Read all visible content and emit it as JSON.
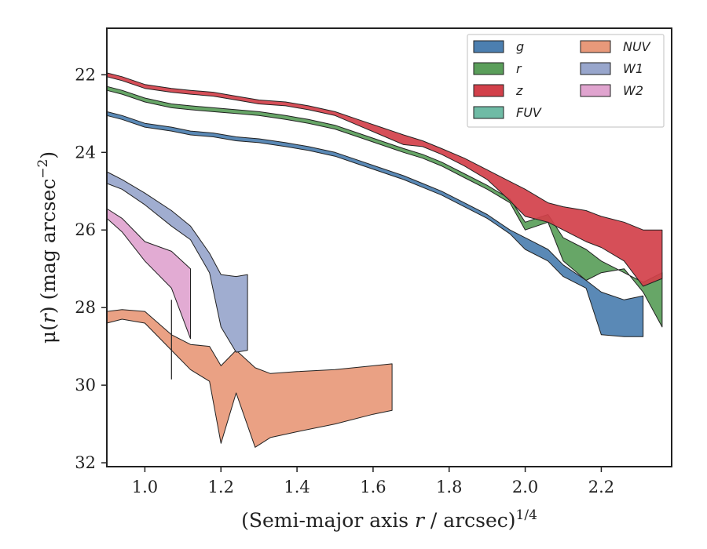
{
  "chart_data": {
    "type": "area",
    "title": "",
    "xlabel": {
      "prefix": "(Semi-major axis ",
      "var": "r",
      "suffix": " / arcsec)",
      "sup": "1/4"
    },
    "ylabel": {
      "prefix": "μ(",
      "var": "r",
      "suffix": ") (mag arcsec",
      "sup": "−2",
      "close": ")"
    },
    "xlim": [
      0.9,
      2.385
    ],
    "ylim": [
      32.1,
      20.8
    ],
    "y_inverted": true,
    "xticks": [
      1.0,
      1.2,
      1.4,
      1.6,
      1.8,
      2.0,
      2.2
    ],
    "xtick_labels": [
      "1.0",
      "1.2",
      "1.4",
      "1.6",
      "1.8",
      "2.0",
      "2.2"
    ],
    "yticks": [
      22,
      24,
      26,
      28,
      30,
      32
    ],
    "ytick_labels": [
      "22",
      "24",
      "26",
      "28",
      "30",
      "32"
    ],
    "grid": false,
    "legend": {
      "placement": "top-right",
      "columns": 2
    },
    "series": [
      {
        "name": "g",
        "color": "#4c7fb0",
        "upper": [
          [
            0.9,
            22.95
          ],
          [
            0.94,
            23.05
          ],
          [
            1.0,
            23.25
          ],
          [
            1.07,
            23.35
          ],
          [
            1.12,
            23.45
          ],
          [
            1.18,
            23.5
          ],
          [
            1.24,
            23.6
          ],
          [
            1.3,
            23.65
          ],
          [
            1.37,
            23.75
          ],
          [
            1.43,
            23.85
          ],
          [
            1.5,
            24.0
          ],
          [
            1.56,
            24.2
          ],
          [
            1.62,
            24.4
          ],
          [
            1.68,
            24.6
          ],
          [
            1.73,
            24.8
          ],
          [
            1.78,
            25.0
          ],
          [
            1.84,
            25.3
          ],
          [
            1.9,
            25.6
          ],
          [
            1.96,
            26.0
          ],
          [
            2.02,
            26.3
          ],
          [
            2.06,
            26.5
          ],
          [
            2.1,
            26.9
          ],
          [
            2.16,
            27.3
          ],
          [
            2.2,
            27.6
          ],
          [
            2.26,
            27.8
          ],
          [
            2.31,
            27.7
          ]
        ],
        "lower": [
          [
            0.9,
            23.05
          ],
          [
            0.94,
            23.15
          ],
          [
            1.0,
            23.35
          ],
          [
            1.07,
            23.45
          ],
          [
            1.12,
            23.55
          ],
          [
            1.18,
            23.6
          ],
          [
            1.24,
            23.7
          ],
          [
            1.3,
            23.75
          ],
          [
            1.37,
            23.85
          ],
          [
            1.43,
            23.95
          ],
          [
            1.5,
            24.1
          ],
          [
            1.56,
            24.3
          ],
          [
            1.62,
            24.5
          ],
          [
            1.68,
            24.7
          ],
          [
            1.73,
            24.9
          ],
          [
            1.78,
            25.1
          ],
          [
            1.84,
            25.4
          ],
          [
            1.9,
            25.7
          ],
          [
            1.96,
            26.1
          ],
          [
            2.0,
            26.5
          ],
          [
            2.06,
            26.8
          ],
          [
            2.1,
            27.2
          ],
          [
            2.16,
            27.5
          ],
          [
            2.2,
            28.7
          ],
          [
            2.26,
            28.75
          ],
          [
            2.31,
            28.75
          ]
        ]
      },
      {
        "name": "r",
        "color": "#5a9e5a",
        "upper": [
          [
            0.9,
            22.3
          ],
          [
            0.94,
            22.4
          ],
          [
            1.0,
            22.6
          ],
          [
            1.07,
            22.75
          ],
          [
            1.12,
            22.8
          ],
          [
            1.18,
            22.85
          ],
          [
            1.24,
            22.9
          ],
          [
            1.3,
            22.95
          ],
          [
            1.37,
            23.05
          ],
          [
            1.43,
            23.15
          ],
          [
            1.5,
            23.3
          ],
          [
            1.56,
            23.5
          ],
          [
            1.62,
            23.7
          ],
          [
            1.68,
            23.9
          ],
          [
            1.73,
            24.05
          ],
          [
            1.78,
            24.25
          ],
          [
            1.84,
            24.55
          ],
          [
            1.9,
            24.85
          ],
          [
            1.96,
            25.2
          ],
          [
            2.0,
            25.8
          ],
          [
            2.06,
            25.6
          ],
          [
            2.1,
            26.2
          ],
          [
            2.16,
            26.5
          ],
          [
            2.2,
            26.8
          ],
          [
            2.26,
            27.1
          ],
          [
            2.31,
            27.35
          ],
          [
            2.36,
            27.1
          ]
        ],
        "lower": [
          [
            0.9,
            22.4
          ],
          [
            0.94,
            22.5
          ],
          [
            1.0,
            22.7
          ],
          [
            1.07,
            22.85
          ],
          [
            1.12,
            22.9
          ],
          [
            1.18,
            22.95
          ],
          [
            1.24,
            23.0
          ],
          [
            1.3,
            23.05
          ],
          [
            1.37,
            23.15
          ],
          [
            1.43,
            23.25
          ],
          [
            1.5,
            23.4
          ],
          [
            1.56,
            23.6
          ],
          [
            1.62,
            23.8
          ],
          [
            1.68,
            24.0
          ],
          [
            1.73,
            24.15
          ],
          [
            1.78,
            24.35
          ],
          [
            1.84,
            24.65
          ],
          [
            1.9,
            24.95
          ],
          [
            1.96,
            25.3
          ],
          [
            2.0,
            26.0
          ],
          [
            2.06,
            25.8
          ],
          [
            2.1,
            26.8
          ],
          [
            2.16,
            27.3
          ],
          [
            2.2,
            27.1
          ],
          [
            2.26,
            27.0
          ],
          [
            2.31,
            27.6
          ],
          [
            2.36,
            28.5
          ]
        ]
      },
      {
        "name": "z",
        "color": "#d2404a",
        "upper": [
          [
            0.9,
            21.95
          ],
          [
            0.94,
            22.05
          ],
          [
            1.0,
            22.25
          ],
          [
            1.07,
            22.35
          ],
          [
            1.12,
            22.4
          ],
          [
            1.18,
            22.45
          ],
          [
            1.24,
            22.55
          ],
          [
            1.3,
            22.65
          ],
          [
            1.37,
            22.7
          ],
          [
            1.43,
            22.8
          ],
          [
            1.5,
            22.95
          ],
          [
            1.56,
            23.15
          ],
          [
            1.62,
            23.35
          ],
          [
            1.68,
            23.55
          ],
          [
            1.73,
            23.7
          ],
          [
            1.78,
            23.9
          ],
          [
            1.84,
            24.15
          ],
          [
            1.9,
            24.45
          ],
          [
            1.96,
            24.75
          ],
          [
            2.0,
            24.95
          ],
          [
            2.06,
            25.3
          ],
          [
            2.1,
            25.4
          ],
          [
            2.16,
            25.5
          ],
          [
            2.2,
            25.65
          ],
          [
            2.26,
            25.8
          ],
          [
            2.31,
            26.0
          ],
          [
            2.36,
            26.0
          ]
        ],
        "lower": [
          [
            0.9,
            22.05
          ],
          [
            0.94,
            22.15
          ],
          [
            1.0,
            22.35
          ],
          [
            1.07,
            22.45
          ],
          [
            1.12,
            22.5
          ],
          [
            1.18,
            22.55
          ],
          [
            1.24,
            22.65
          ],
          [
            1.3,
            22.75
          ],
          [
            1.37,
            22.8
          ],
          [
            1.43,
            22.9
          ],
          [
            1.5,
            23.05
          ],
          [
            1.56,
            23.3
          ],
          [
            1.62,
            23.55
          ],
          [
            1.68,
            23.8
          ],
          [
            1.73,
            23.85
          ],
          [
            1.78,
            24.05
          ],
          [
            1.84,
            24.35
          ],
          [
            1.9,
            24.7
          ],
          [
            1.96,
            25.25
          ],
          [
            2.0,
            25.65
          ],
          [
            2.06,
            25.8
          ],
          [
            2.1,
            26.0
          ],
          [
            2.16,
            26.3
          ],
          [
            2.2,
            26.45
          ],
          [
            2.26,
            26.8
          ],
          [
            2.31,
            27.45
          ],
          [
            2.36,
            27.25
          ]
        ]
      },
      {
        "name": "FUV",
        "color": "#6fbba5",
        "upper": [],
        "lower": []
      },
      {
        "name": "NUV",
        "color": "#e8997a",
        "upper": [
          [
            0.9,
            28.1
          ],
          [
            0.94,
            28.05
          ],
          [
            1.0,
            28.1
          ],
          [
            1.07,
            28.7
          ],
          [
            1.12,
            28.95
          ],
          [
            1.17,
            29.0
          ],
          [
            1.2,
            29.5
          ],
          [
            1.24,
            29.1
          ],
          [
            1.29,
            29.55
          ],
          [
            1.33,
            29.7
          ],
          [
            1.4,
            29.65
          ],
          [
            1.5,
            29.6
          ],
          [
            1.6,
            29.5
          ],
          [
            1.65,
            29.45
          ]
        ],
        "lower": [
          [
            0.9,
            28.4
          ],
          [
            0.94,
            28.3
          ],
          [
            1.0,
            28.4
          ],
          [
            1.07,
            29.1
          ],
          [
            1.12,
            29.6
          ],
          [
            1.17,
            29.9
          ],
          [
            1.2,
            31.5
          ],
          [
            1.24,
            30.2
          ],
          [
            1.29,
            31.6
          ],
          [
            1.33,
            31.35
          ],
          [
            1.4,
            31.2
          ],
          [
            1.5,
            31.0
          ],
          [
            1.6,
            30.75
          ],
          [
            1.65,
            30.65
          ]
        ]
      },
      {
        "name": "W1",
        "color": "#98a6cc",
        "upper": [
          [
            0.9,
            24.5
          ],
          [
            0.94,
            24.7
          ],
          [
            1.0,
            25.05
          ],
          [
            1.07,
            25.5
          ],
          [
            1.12,
            25.9
          ],
          [
            1.17,
            26.6
          ],
          [
            1.2,
            27.15
          ],
          [
            1.24,
            27.2
          ],
          [
            1.27,
            27.15
          ]
        ],
        "lower": [
          [
            0.9,
            24.8
          ],
          [
            0.94,
            24.95
          ],
          [
            1.0,
            25.35
          ],
          [
            1.07,
            25.9
          ],
          [
            1.12,
            26.25
          ],
          [
            1.17,
            27.1
          ],
          [
            1.2,
            28.5
          ],
          [
            1.24,
            29.15
          ],
          [
            1.27,
            29.1
          ]
        ]
      },
      {
        "name": "W2",
        "color": "#e0a4cf",
        "upper": [
          [
            0.9,
            25.45
          ],
          [
            0.94,
            25.7
          ],
          [
            1.0,
            26.3
          ],
          [
            1.07,
            26.55
          ],
          [
            1.12,
            27.0
          ]
        ],
        "lower": [
          [
            0.9,
            25.7
          ],
          [
            0.94,
            26.05
          ],
          [
            1.0,
            26.8
          ],
          [
            1.07,
            27.5
          ],
          [
            1.12,
            28.8
          ]
        ]
      }
    ],
    "annotations": [
      {
        "type": "vertical_line",
        "x": 1.07,
        "y_range": [
          27.8,
          29.85
        ],
        "color": "#222222"
      }
    ]
  }
}
